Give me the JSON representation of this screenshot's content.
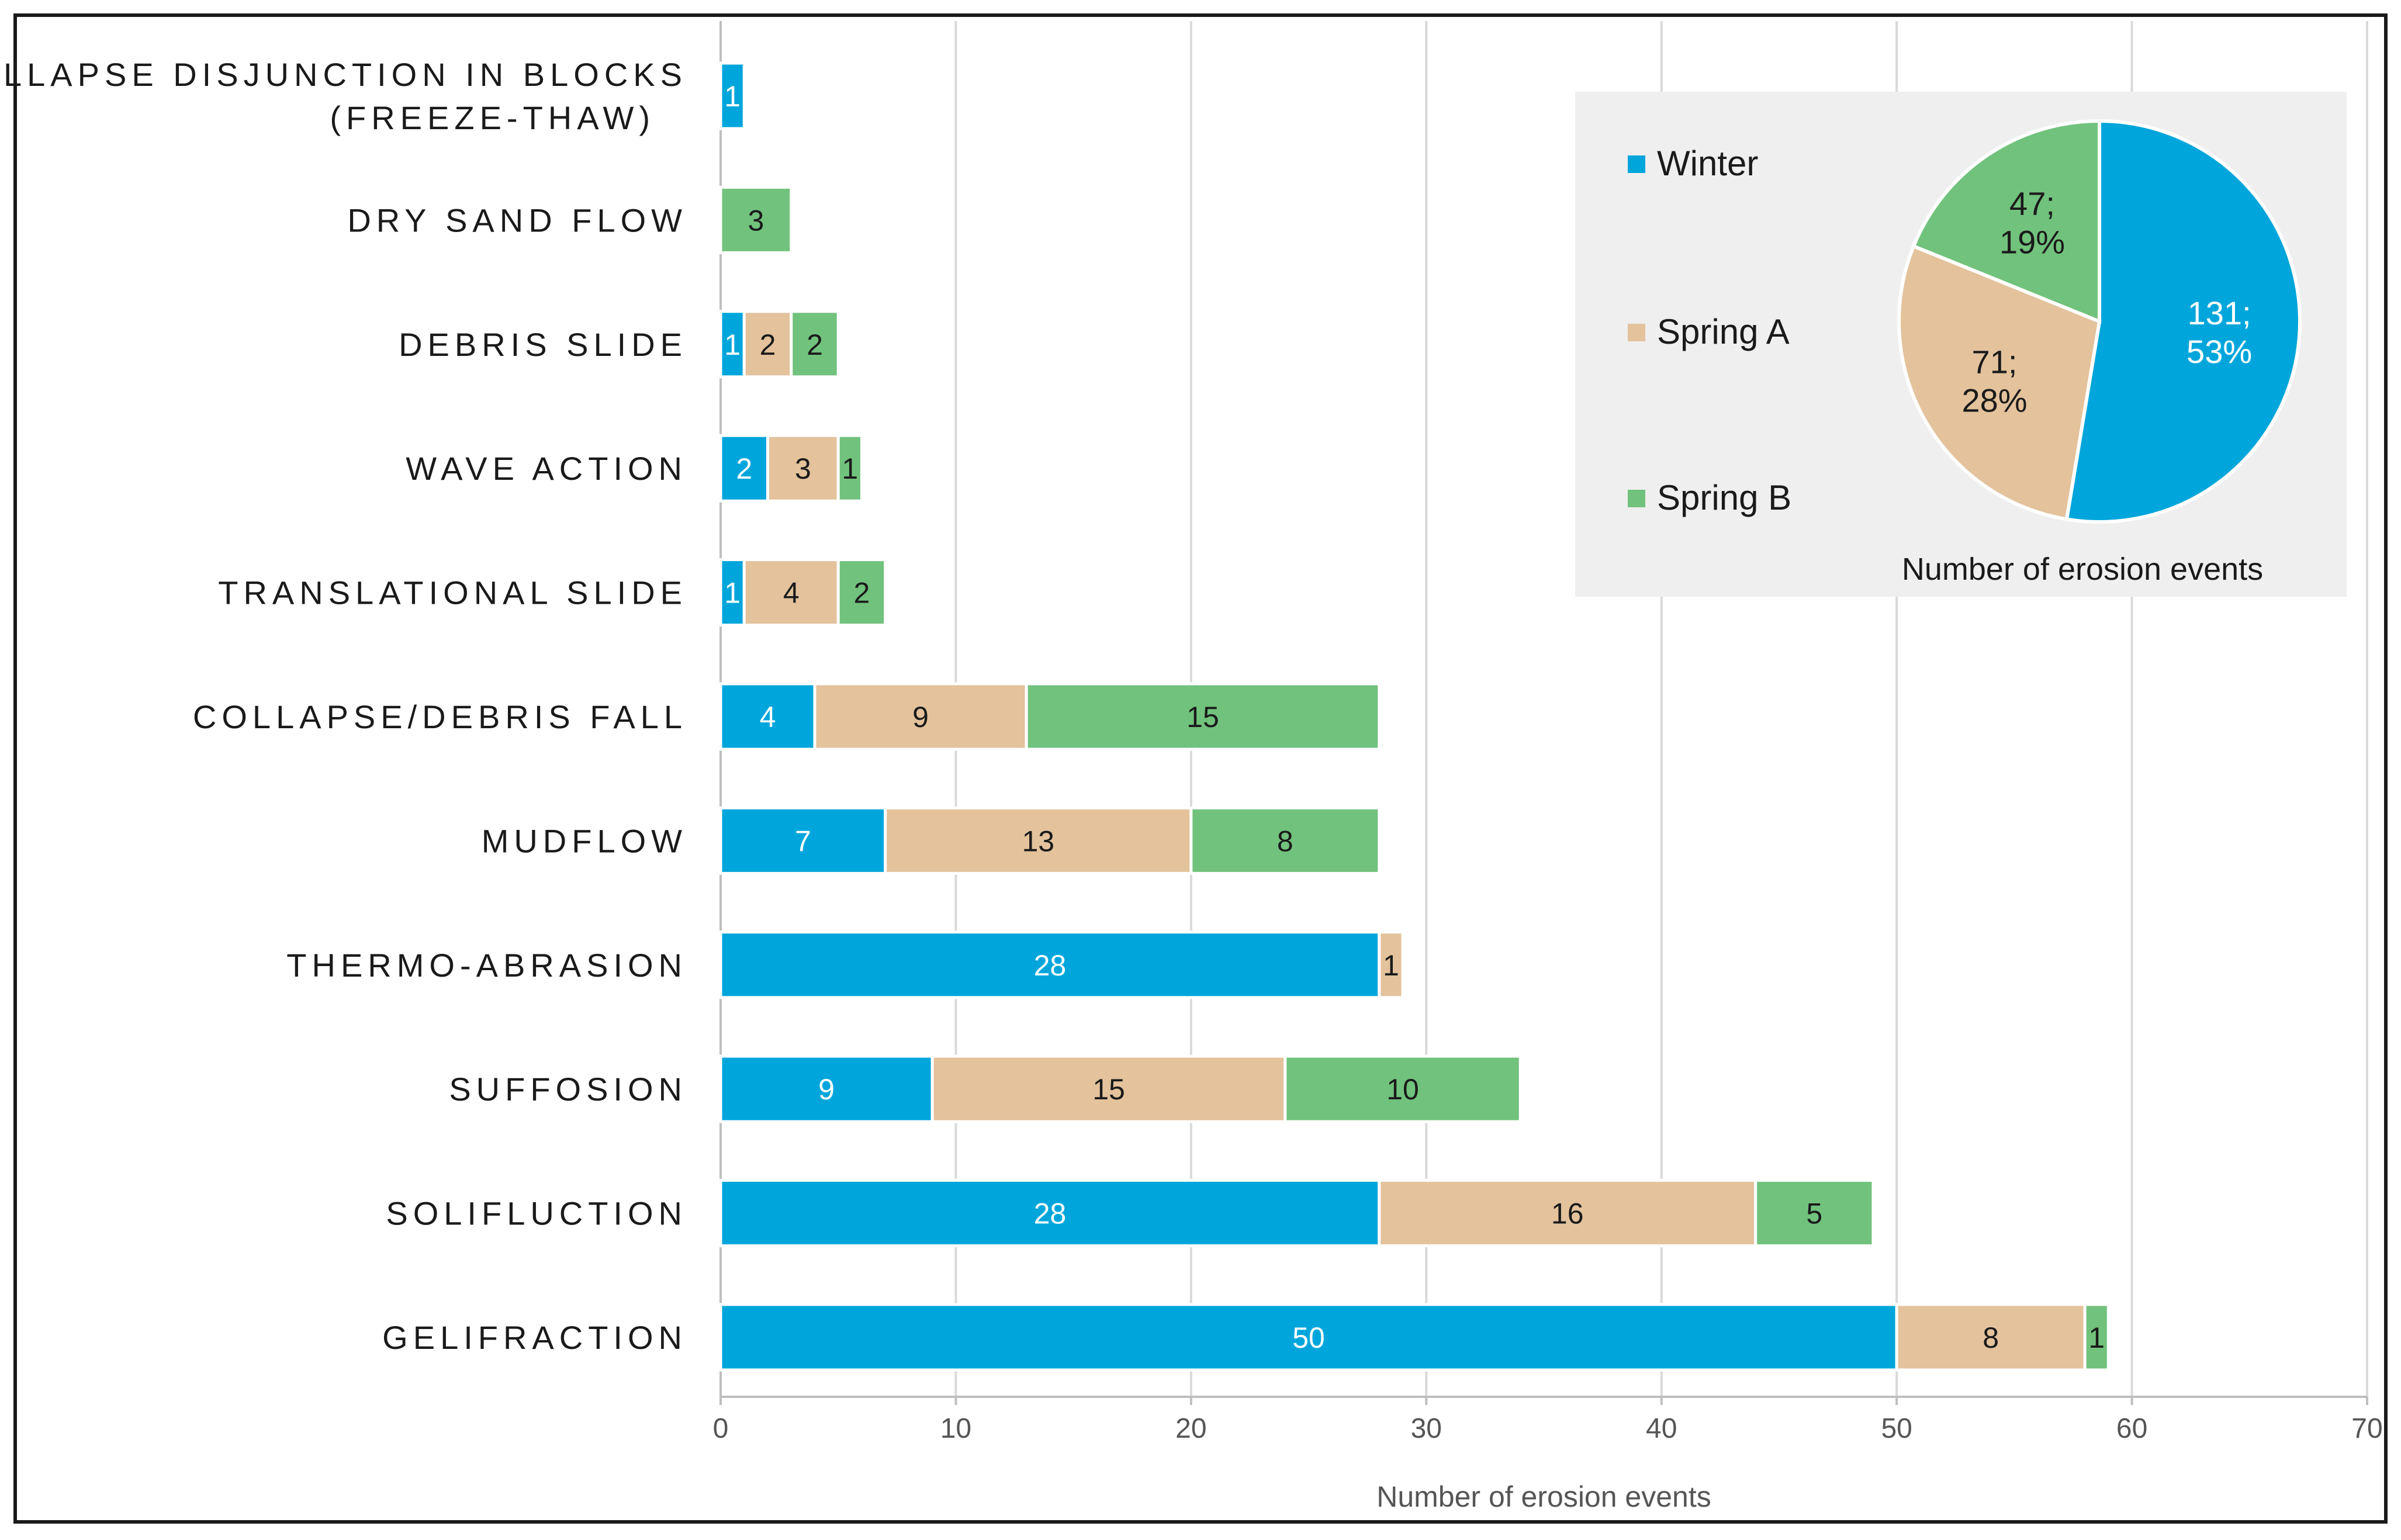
{
  "chart_data": [
    {
      "type": "bar",
      "orientation": "horizontal",
      "stacked": true,
      "categories": [
        "GELIFRACTION",
        "SOLIFLUCTION",
        "SUFFOSION",
        "THERMO-ABRASION",
        "MUDFLOW",
        "COLLAPSE/DEBRIS FALL",
        "TRANSLATIONAL SLIDE",
        "WAVE ACTION",
        "DEBRIS SLIDE",
        "DRY SAND FLOW",
        "COLLAPSE DISJUNCTION IN BLOCKS (FREEZE-THAW)"
      ],
      "category_lines": [
        [
          "GELIFRACTION"
        ],
        [
          "SOLIFLUCTION"
        ],
        [
          "SUFFOSION"
        ],
        [
          "THERMO-ABRASION"
        ],
        [
          "MUDFLOW"
        ],
        [
          "COLLAPSE/DEBRIS FALL"
        ],
        [
          "TRANSLATIONAL SLIDE"
        ],
        [
          "WAVE ACTION"
        ],
        [
          "DEBRIS SLIDE"
        ],
        [
          "DRY SAND FLOW"
        ],
        [
          "COLLAPSE DISJUNCTION IN BLOCKS",
          "(FREEZE-THAW)"
        ]
      ],
      "series": [
        {
          "name": "Winter",
          "color": "#00a6db",
          "label_color": "#ffffff",
          "values": [
            50,
            28,
            9,
            28,
            7,
            4,
            1,
            2,
            1,
            0,
            1
          ]
        },
        {
          "name": "Spring A",
          "color": "#e3c29c",
          "label_color": "#1a1a1a",
          "values": [
            8,
            16,
            15,
            1,
            13,
            9,
            4,
            3,
            2,
            0,
            0
          ]
        },
        {
          "name": "Spring B",
          "color": "#71c27c",
          "label_color": "#1a1a1a",
          "values": [
            1,
            5,
            10,
            0,
            8,
            15,
            2,
            1,
            2,
            3,
            0
          ]
        }
      ],
      "xlabel": "Number of erosion events",
      "ylabel": "",
      "xlim": [
        0,
        70
      ],
      "x_ticks": [
        0,
        10,
        20,
        30,
        40,
        50,
        60,
        70
      ],
      "grid": "vertical",
      "data_labels": true
    },
    {
      "type": "pie",
      "title": "Number of erosion events",
      "slices": [
        {
          "name": "Winter",
          "value": 131,
          "percent": "53%",
          "color": "#00a6db",
          "label_color": "#ffffff"
        },
        {
          "name": "Spring A",
          "value": 71,
          "percent": "28%",
          "color": "#e3c29c",
          "label_color": "#1a1a1a"
        },
        {
          "name": "Spring B",
          "value": 47,
          "percent": "19%",
          "color": "#71c27c",
          "label_color": "#1a1a1a"
        }
      ],
      "legend_position": "left"
    }
  ],
  "colors": {
    "frame": "#1a1a1a",
    "grid": "#d9d9d9",
    "inset_background": "#efefef"
  }
}
